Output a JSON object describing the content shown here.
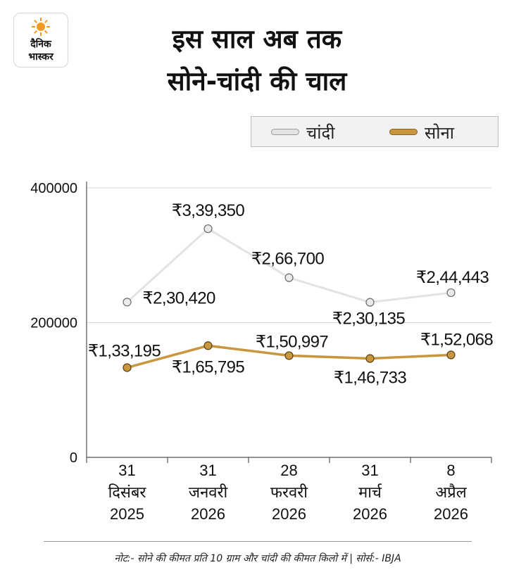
{
  "logo": {
    "line1": "दैनिक",
    "line2": "भास्कर"
  },
  "title": {
    "line1": "इस साल अब तक",
    "line2": "सोने-चांदी की चाल"
  },
  "legend": [
    {
      "label": "चांदी",
      "color": "#e3e3e3"
    },
    {
      "label": "सोना",
      "color": "#c8963e"
    }
  ],
  "chart_data": {
    "type": "line",
    "categories": [
      [
        "31",
        "दिसंबर",
        "2025"
      ],
      [
        "31",
        "जनवरी",
        "2026"
      ],
      [
        "28",
        "फरवरी",
        "2026"
      ],
      [
        "31",
        "मार्च",
        "2026"
      ],
      [
        "8",
        "अप्रैल",
        "2026"
      ]
    ],
    "y_ticks": [
      0,
      200000,
      400000
    ],
    "y_tick_labels": [
      "0",
      "200000",
      "400000"
    ],
    "ylim": [
      0,
      400000
    ],
    "grid": true,
    "legend_position": "top-right",
    "series": [
      {
        "name": "चांदी",
        "color": "#e3e3e3",
        "values": [
          230420,
          339350,
          266700,
          230135,
          244443
        ],
        "labels": [
          "₹2,30,420",
          "₹3,39,350",
          "₹2,66,700",
          "₹2,30,135",
          "₹2,44,443"
        ]
      },
      {
        "name": "सोना",
        "color": "#c8963e",
        "values": [
          133195,
          165795,
          150997,
          146733,
          152068
        ],
        "labels": [
          "₹1,33,195",
          "₹1,65,795",
          "₹1,50,997",
          "₹1,46,733",
          "₹1,52,068"
        ]
      }
    ]
  },
  "footnote": "नोट:- सोने की कीमत प्रति 10 ग्राम और चांदी की कीमत किलो में | सोर्स:- IBJA"
}
